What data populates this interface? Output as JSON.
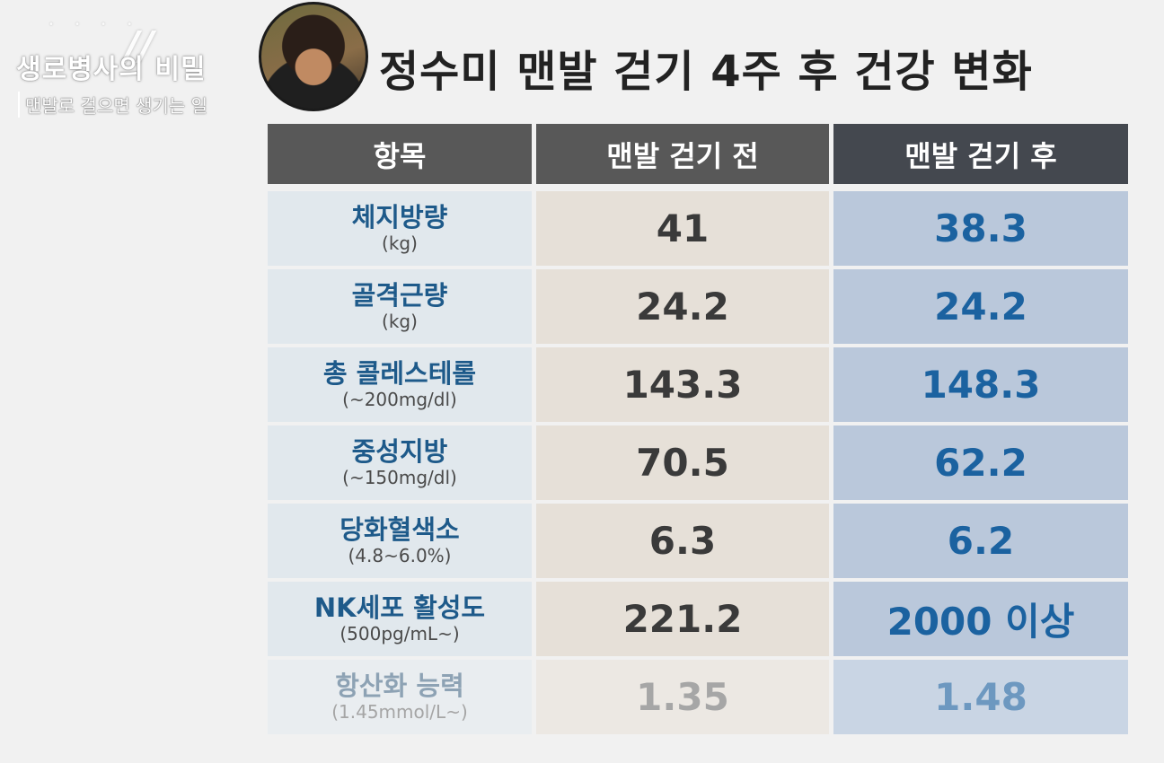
{
  "logo": {
    "title": "생로병사의 비밀",
    "subtitle": "맨발로 걸으면 생기는 일"
  },
  "title": "정수미 맨발 걷기 4주 후 건강 변화",
  "table": {
    "headers": [
      "항목",
      "맨발 걷기 전",
      "맨발 걷기 후"
    ],
    "rows": [
      {
        "name": "체지방량",
        "unit": "(kg)",
        "before": "41",
        "after": "38.3"
      },
      {
        "name": "골격근량",
        "unit": "(kg)",
        "before": "24.2",
        "after": "24.2"
      },
      {
        "name": "총 콜레스테롤",
        "unit": "(~200mg/dl)",
        "before": "143.3",
        "after": "148.3"
      },
      {
        "name": "중성지방",
        "unit": "(~150mg/dl)",
        "before": "70.5",
        "after": "62.2"
      },
      {
        "name": "당화혈색소",
        "unit": "(4.8~6.0%)",
        "before": "6.3",
        "after": "6.2"
      },
      {
        "name": "NK세포 활성도",
        "unit": "(500pg/mL~)",
        "before": "221.2",
        "after": "2000 이상"
      },
      {
        "name": "항산화 능력",
        "unit": "(1.45mmol/L~)",
        "before": "1.35",
        "after": "1.48"
      }
    ]
  },
  "colors": {
    "header_bg": "#585858",
    "header_after_bg": "#44484f",
    "item_bg": "#e1e8ed",
    "before_bg": "#e6e0d8",
    "after_bg": "#bac8db",
    "item_text": "#1e5a8a",
    "after_text": "#1b62a0"
  }
}
